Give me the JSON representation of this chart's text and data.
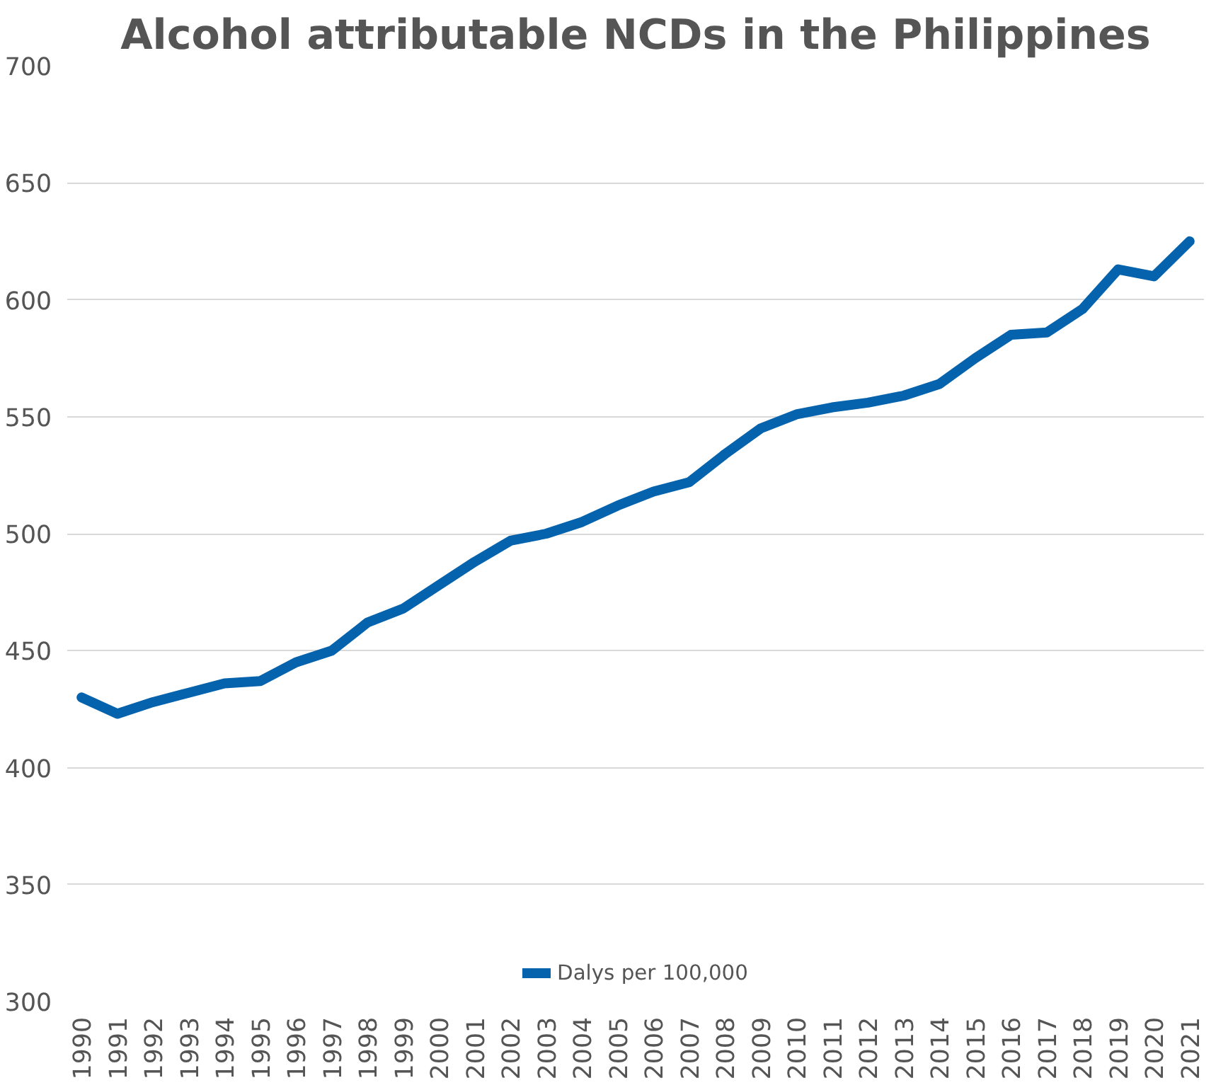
{
  "chart_data": {
    "type": "line",
    "title": "Alcohol attributable NCDs in the Philippines",
    "categories": [
      "1990",
      "1991",
      "1992",
      "1993",
      "1994",
      "1995",
      "1996",
      "1997",
      "1998",
      "1999",
      "2000",
      "2001",
      "2002",
      "2003",
      "2004",
      "2005",
      "2006",
      "2007",
      "2008",
      "2009",
      "2010",
      "2011",
      "2012",
      "2013",
      "2014",
      "2015",
      "2016",
      "2017",
      "2018",
      "2019",
      "2020",
      "2021"
    ],
    "series": [
      {
        "name": "Dalys per 100,000",
        "color": "#0563ad",
        "values": [
          430,
          423,
          428,
          432,
          436,
          437,
          445,
          450,
          462,
          468,
          478,
          488,
          497,
          500,
          505,
          512,
          518,
          522,
          534,
          545,
          551,
          554,
          556,
          559,
          564,
          575,
          585,
          586,
          596,
          613,
          610,
          625
        ]
      }
    ],
    "ylim": [
      300,
      700
    ],
    "yticks": [
      300,
      350,
      400,
      450,
      500,
      550,
      600,
      650,
      700
    ],
    "grid": "y",
    "legend": "bottom",
    "marker": "none",
    "line_style": "solid"
  }
}
